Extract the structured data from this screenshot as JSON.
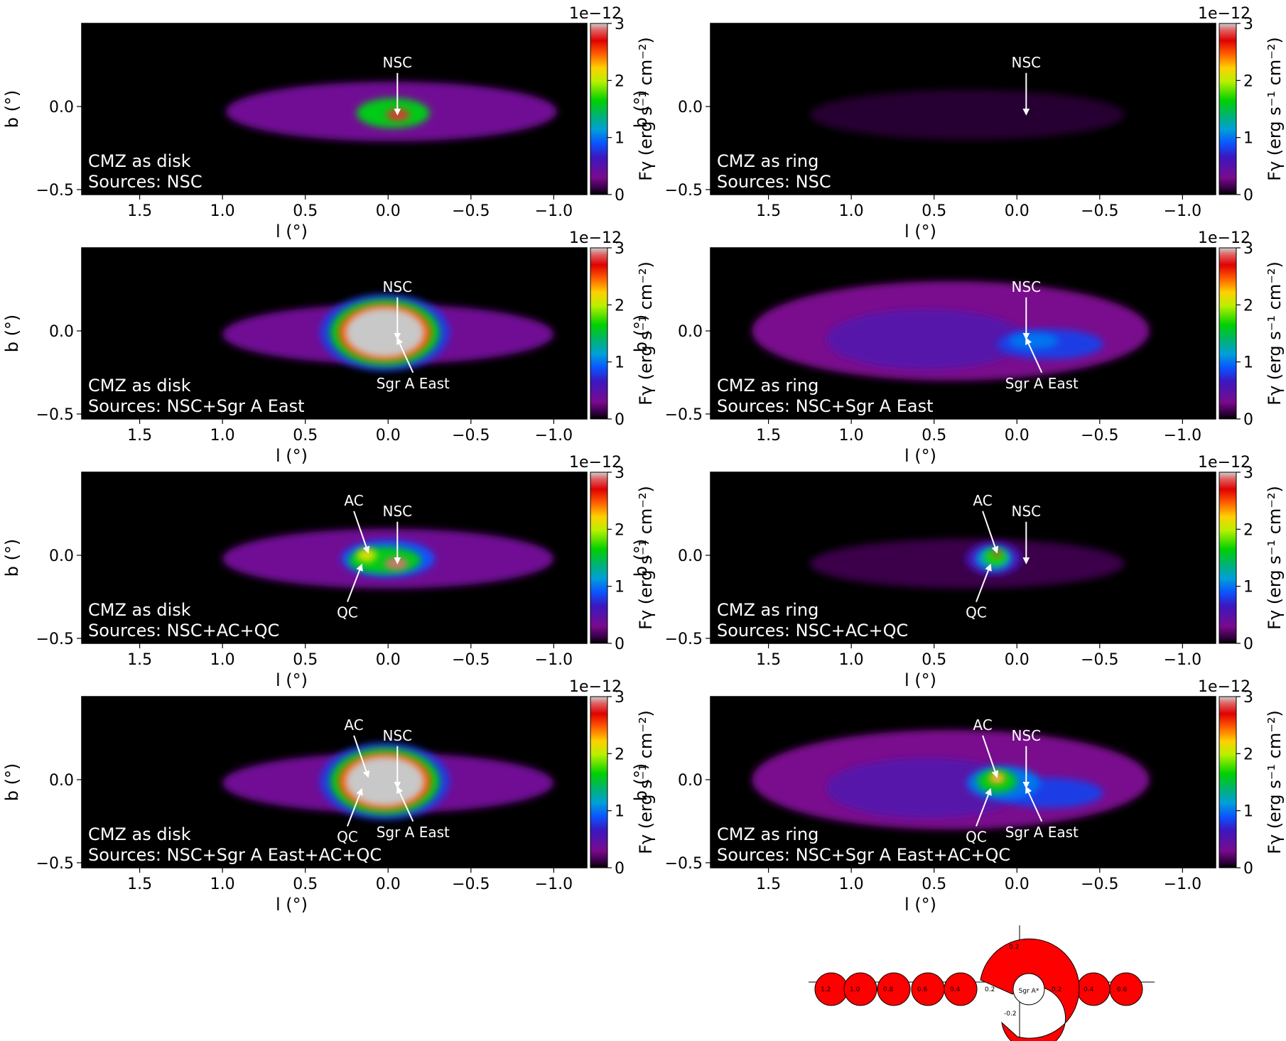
{
  "colorbar": {
    "scale_label": "1e−12",
    "label": "Fγ (erg s⁻¹ cm⁻²)",
    "ticks": [
      "0",
      "1",
      "2",
      "3"
    ],
    "range": [
      0,
      3
    ]
  },
  "axes": {
    "xlabel": "l (°)",
    "ylabel": "b (°)",
    "x_ticks": [
      1.5,
      1.0,
      0.5,
      0.0,
      -0.5,
      -1.0
    ],
    "x_tick_labels": [
      "1.5",
      "1.0",
      "0.5",
      "0.0",
      "−0.5",
      "−1.0"
    ],
    "y_ticks": [
      0.0,
      -0.5
    ],
    "y_tick_labels": [
      "0.0",
      "−0.5"
    ],
    "xlim": [
      1.85,
      -1.2
    ],
    "ylim": [
      -0.53,
      0.5
    ]
  },
  "chart_data": [
    {
      "type": "heatmap",
      "panel": "disk-nsc",
      "model_line": "CMZ as disk",
      "sources_line": "Sources: NSC",
      "annotations": [
        {
          "text": "NSC",
          "l": -0.056,
          "b": -0.046
        }
      ],
      "blobs": [
        {
          "l": -0.02,
          "b": -0.03,
          "rl": 1.0,
          "rb": 0.18,
          "level": 0.35
        },
        {
          "l": -0.03,
          "b": -0.04,
          "rl": 0.22,
          "rb": 0.09,
          "level": 1.6
        },
        {
          "l": -0.06,
          "b": -0.05,
          "rl": 0.07,
          "rb": 0.035,
          "level": 2.8
        }
      ]
    },
    {
      "type": "heatmap",
      "panel": "ring-nsc",
      "model_line": "CMZ as ring",
      "sources_line": "Sources: NSC",
      "annotations": [
        {
          "text": "NSC",
          "l": -0.056,
          "b": -0.046
        }
      ],
      "blobs": [
        {
          "l": 0.3,
          "b": -0.05,
          "rl": 0.95,
          "rb": 0.15,
          "level": 0.08
        }
      ]
    },
    {
      "type": "heatmap",
      "panel": "disk-nsc-sgra",
      "model_line": "CMZ as disk",
      "sources_line": "Sources: NSC+Sgr A East",
      "annotations": [
        {
          "text": "NSC",
          "l": -0.056,
          "b": -0.046
        },
        {
          "text": "Sgr A East",
          "l": -0.056,
          "b": -0.046
        }
      ],
      "blobs": [
        {
          "l": 0.0,
          "b": -0.02,
          "rl": 1.0,
          "rb": 0.18,
          "level": 0.35
        },
        {
          "l": 0.02,
          "b": -0.01,
          "rl": 0.39,
          "rb": 0.23,
          "level": 0.8
        },
        {
          "l": 0.02,
          "b": -0.01,
          "rl": 0.33,
          "rb": 0.2,
          "level": 1.6
        },
        {
          "l": 0.02,
          "b": -0.01,
          "rl": 0.28,
          "rb": 0.17,
          "level": 2.5
        },
        {
          "l": 0.02,
          "b": -0.01,
          "rl": 0.24,
          "rb": 0.15,
          "level": 3.2
        }
      ]
    },
    {
      "type": "heatmap",
      "panel": "ring-nsc-sgra",
      "model_line": "CMZ as ring",
      "sources_line": "Sources: NSC+Sgr A East",
      "annotations": [
        {
          "text": "NSC",
          "l": -0.056,
          "b": -0.046
        },
        {
          "text": "Sgr A East",
          "l": -0.056,
          "b": -0.046
        }
      ],
      "blobs": [
        {
          "l": 0.4,
          "b": 0.0,
          "rl": 1.2,
          "rb": 0.3,
          "level": 0.3
        },
        {
          "l": 0.55,
          "b": -0.05,
          "rl": 0.6,
          "rb": 0.18,
          "level": 0.5
        },
        {
          "l": -0.2,
          "b": -0.08,
          "rl": 0.32,
          "rb": 0.09,
          "level": 0.8
        },
        {
          "l": -0.1,
          "b": -0.06,
          "rl": 0.15,
          "rb": 0.05,
          "level": 1.0
        }
      ]
    },
    {
      "type": "heatmap",
      "panel": "disk-nsc-ac-qc",
      "model_line": "CMZ as disk",
      "sources_line": "Sources: NSC+AC+QC",
      "annotations": [
        {
          "text": "NSC",
          "l": -0.056,
          "b": -0.046
        },
        {
          "text": "AC",
          "l": 0.121,
          "b": 0.018
        },
        {
          "text": "QC",
          "l": 0.16,
          "b": -0.058
        }
      ],
      "blobs": [
        {
          "l": 0.0,
          "b": -0.02,
          "rl": 1.0,
          "rb": 0.18,
          "level": 0.35
        },
        {
          "l": 0.0,
          "b": -0.02,
          "rl": 0.28,
          "rb": 0.11,
          "level": 0.9
        },
        {
          "l": 0.02,
          "b": -0.03,
          "rl": 0.22,
          "rb": 0.08,
          "level": 1.6
        },
        {
          "l": 0.13,
          "b": 0.0,
          "rl": 0.06,
          "rb": 0.04,
          "level": 2.1
        },
        {
          "l": -0.05,
          "b": -0.05,
          "rl": 0.07,
          "rb": 0.035,
          "level": 2.9
        }
      ]
    },
    {
      "type": "heatmap",
      "panel": "ring-nsc-ac-qc",
      "model_line": "CMZ as ring",
      "sources_line": "Sources: NSC+AC+QC",
      "annotations": [
        {
          "text": "AC",
          "l": 0.121,
          "b": 0.018
        },
        {
          "text": "NSC",
          "l": -0.056,
          "b": -0.046
        },
        {
          "text": "QC",
          "l": 0.16,
          "b": -0.058
        }
      ],
      "blobs": [
        {
          "l": 0.3,
          "b": -0.05,
          "rl": 0.95,
          "rb": 0.15,
          "level": 0.12
        },
        {
          "l": 0.14,
          "b": -0.02,
          "rl": 0.17,
          "rb": 0.1,
          "level": 0.6
        },
        {
          "l": 0.14,
          "b": -0.02,
          "rl": 0.11,
          "rb": 0.07,
          "level": 1.1
        },
        {
          "l": 0.13,
          "b": -0.01,
          "rl": 0.07,
          "rb": 0.05,
          "level": 1.7
        },
        {
          "l": 0.12,
          "b": 0.01,
          "rl": 0.025,
          "rb": 0.02,
          "level": 2.8
        }
      ]
    },
    {
      "type": "heatmap",
      "panel": "disk-all",
      "model_line": "CMZ as disk",
      "sources_line": "Sources: NSC+Sgr A East+AC+QC",
      "annotations": [
        {
          "text": "AC",
          "l": 0.121,
          "b": 0.018
        },
        {
          "text": "NSC",
          "l": -0.056,
          "b": -0.046
        },
        {
          "text": "QC",
          "l": 0.16,
          "b": -0.058
        },
        {
          "text": "Sgr A East",
          "l": -0.056,
          "b": -0.046
        }
      ],
      "blobs": [
        {
          "l": 0.0,
          "b": -0.02,
          "rl": 1.0,
          "rb": 0.18,
          "level": 0.35
        },
        {
          "l": 0.02,
          "b": -0.01,
          "rl": 0.39,
          "rb": 0.23,
          "level": 0.8
        },
        {
          "l": 0.02,
          "b": -0.01,
          "rl": 0.33,
          "rb": 0.2,
          "level": 1.6
        },
        {
          "l": 0.02,
          "b": -0.01,
          "rl": 0.28,
          "rb": 0.17,
          "level": 2.5
        },
        {
          "l": 0.02,
          "b": -0.01,
          "rl": 0.24,
          "rb": 0.15,
          "level": 3.2
        }
      ]
    },
    {
      "type": "heatmap",
      "panel": "ring-all",
      "model_line": "CMZ as ring",
      "sources_line": "Sources: NSC+Sgr A East+AC+QC",
      "annotations": [
        {
          "text": "AC",
          "l": 0.121,
          "b": 0.018
        },
        {
          "text": "NSC",
          "l": -0.056,
          "b": -0.046
        },
        {
          "text": "QC",
          "l": 0.16,
          "b": -0.058
        },
        {
          "text": "Sgr A East",
          "l": -0.056,
          "b": -0.046
        }
      ],
      "blobs": [
        {
          "l": 0.4,
          "b": 0.0,
          "rl": 1.2,
          "rb": 0.3,
          "level": 0.3
        },
        {
          "l": 0.55,
          "b": -0.05,
          "rl": 0.6,
          "rb": 0.18,
          "level": 0.5
        },
        {
          "l": -0.2,
          "b": -0.08,
          "rl": 0.32,
          "rb": 0.09,
          "level": 0.8
        },
        {
          "l": 0.08,
          "b": -0.02,
          "rl": 0.22,
          "rb": 0.1,
          "level": 1.0
        },
        {
          "l": 0.12,
          "b": -0.01,
          "rl": 0.12,
          "rb": 0.07,
          "level": 1.6
        },
        {
          "l": 0.12,
          "b": 0.01,
          "rl": 0.05,
          "rb": 0.035,
          "level": 2.3
        },
        {
          "l": 0.12,
          "b": 0.01,
          "rl": 0.02,
          "rb": 0.015,
          "level": 3.0
        }
      ]
    }
  ],
  "geometry_sketch": {
    "center_label": "Sgr A*",
    "axis_labels": [
      "1.2",
      "1.0",
      "0.8",
      "0.6",
      "0.4",
      "0.2",
      "0.2",
      "0.4",
      "0.6",
      "0.2",
      "-0.2"
    ],
    "fill_color": "#ff0000"
  }
}
